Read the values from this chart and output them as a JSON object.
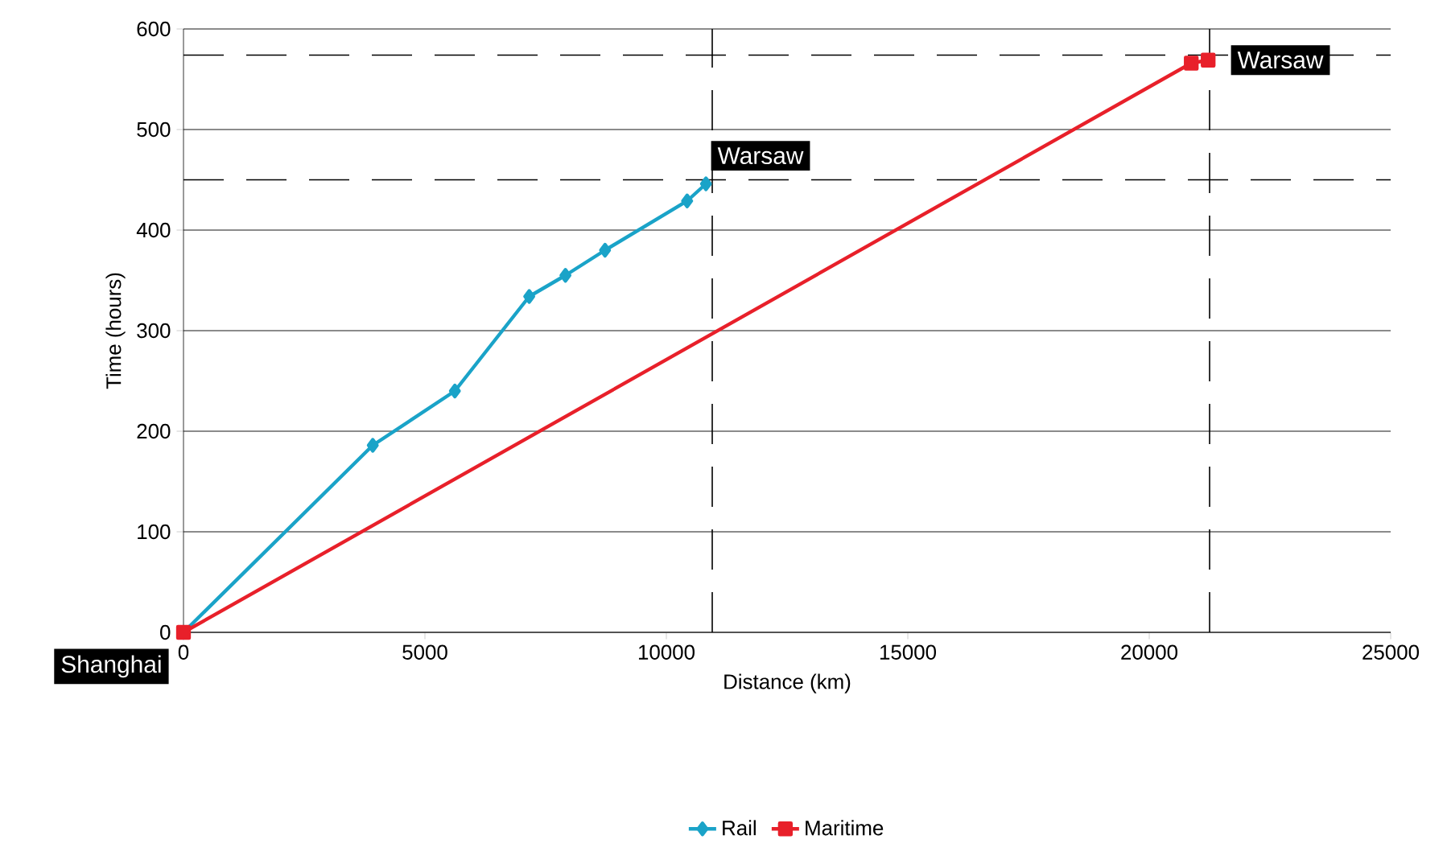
{
  "chart_data": {
    "type": "line",
    "xlabel": "Distance (km)",
    "ylabel": "Time (hours)",
    "xlim": [
      0,
      25000
    ],
    "ylim": [
      0,
      600
    ],
    "xticks": [
      0,
      5000,
      10000,
      15000,
      20000,
      25000
    ],
    "yticks": [
      0,
      100,
      200,
      300,
      400,
      500,
      600
    ],
    "grid": "y",
    "legend": "bottom",
    "series": [
      {
        "name": "Rail",
        "color": "#1aa3c8",
        "marker": "diamond",
        "x": [
          0,
          3920,
          5620,
          7160,
          7910,
          8730,
          10430,
          10820
        ],
        "values": [
          0,
          186,
          240,
          334,
          355,
          380,
          429,
          446
        ]
      },
      {
        "name": "Maritime",
        "color": "#e8202a",
        "marker": "square",
        "x": [
          0,
          20870,
          21220
        ],
        "values": [
          0,
          566,
          569
        ]
      }
    ],
    "ref_lines": [
      {
        "axis": "y",
        "value": 450,
        "color": "#000000",
        "line_style": "dashed"
      },
      {
        "axis": "y",
        "value": 574,
        "color": "#000000",
        "line_style": "dashed"
      },
      {
        "axis": "x",
        "value": 10950,
        "color": "#000000",
        "line_style": "dashed"
      },
      {
        "axis": "x",
        "value": 21250,
        "color": "#000000",
        "line_style": "dashed"
      }
    ],
    "annotations": [
      {
        "text": "Warsaw",
        "x": 10820,
        "y": 446
      },
      {
        "text": "Warsaw",
        "x": 21220,
        "y": 569
      },
      {
        "text": "Shanghai",
        "x": 0,
        "y": 0
      }
    ]
  }
}
